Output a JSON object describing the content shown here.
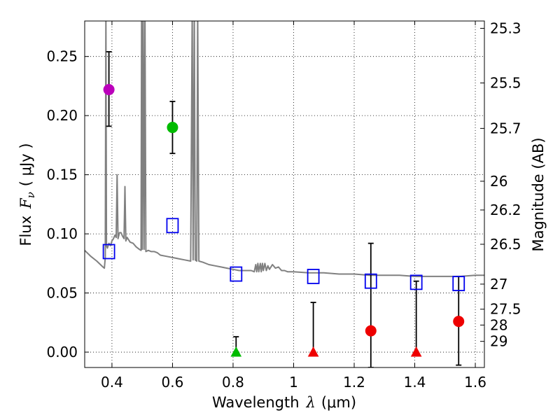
{
  "chart_data": {
    "type": "scatter",
    "xlabel": "Wavelength",
    "xlabel_symbol": "λ",
    "xlabel_unit": "(μm)",
    "ylabel": "Flux",
    "ylabel_symbol": "F",
    "ylabel_subscript": "ν",
    "ylabel_unit": "( μJy )",
    "right_ylabel": "Magnitude (AB)",
    "xlim": [
      0.31,
      1.63
    ],
    "ylim": [
      -0.013,
      0.28
    ],
    "grid": true,
    "x_ticks": [
      {
        "value": 0.4,
        "label": "0.4"
      },
      {
        "value": 0.6,
        "label": "0.6"
      },
      {
        "value": 0.8,
        "label": "0.8"
      },
      {
        "value": 1.0,
        "label": "1"
      },
      {
        "value": 1.2,
        "label": "1.2"
      },
      {
        "value": 1.4,
        "label": "1.4"
      },
      {
        "value": 1.6,
        "label": "1.6"
      }
    ],
    "y_ticks": [
      {
        "value": 0.0,
        "label": "0.00"
      },
      {
        "value": 0.05,
        "label": "0.05"
      },
      {
        "value": 0.1,
        "label": "0.10"
      },
      {
        "value": 0.15,
        "label": "0.15"
      },
      {
        "value": 0.2,
        "label": "0.20"
      },
      {
        "value": 0.25,
        "label": "0.25"
      }
    ],
    "right_ticks": [
      {
        "flux": 0.2738,
        "label": "25.3"
      },
      {
        "flux": 0.2276,
        "label": "25.5"
      },
      {
        "flux": 0.1892,
        "label": "25.7"
      },
      {
        "flux": 0.1445,
        "label": "26"
      },
      {
        "flux": 0.1202,
        "label": "26.2"
      },
      {
        "flux": 0.0912,
        "label": "26.5"
      },
      {
        "flux": 0.0575,
        "label": "27"
      },
      {
        "flux": 0.0363,
        "label": "27.5"
      },
      {
        "flux": 0.0229,
        "label": "28"
      },
      {
        "flux": 0.0091,
        "label": "29"
      }
    ],
    "model_spectrum": {
      "name": "template spectrum",
      "color": "#808080",
      "points": [
        [
          0.31,
          0.086
        ],
        [
          0.33,
          0.081
        ],
        [
          0.35,
          0.077
        ],
        [
          0.37,
          0.072
        ],
        [
          0.375,
          0.071
        ],
        [
          0.378,
          0.08
        ],
        [
          0.38,
          0.29
        ],
        [
          0.382,
          0.09
        ],
        [
          0.385,
          0.088
        ],
        [
          0.39,
          0.092
        ],
        [
          0.395,
          0.09
        ],
        [
          0.4,
          0.094
        ],
        [
          0.405,
          0.096
        ],
        [
          0.41,
          0.099
        ],
        [
          0.414,
          0.097
        ],
        [
          0.417,
          0.15
        ],
        [
          0.42,
          0.096
        ],
        [
          0.425,
          0.101
        ],
        [
          0.43,
          0.101
        ],
        [
          0.435,
          0.098
        ],
        [
          0.44,
          0.096
        ],
        [
          0.443,
          0.14
        ],
        [
          0.446,
          0.094
        ],
        [
          0.45,
          0.097
        ],
        [
          0.46,
          0.093
        ],
        [
          0.47,
          0.092
        ],
        [
          0.48,
          0.089
        ],
        [
          0.49,
          0.087
        ],
        [
          0.496,
          0.086
        ],
        [
          0.498,
          0.29
        ],
        [
          0.5,
          0.087
        ],
        [
          0.503,
          0.29
        ],
        [
          0.506,
          0.087
        ],
        [
          0.509,
          0.29
        ],
        [
          0.512,
          0.085
        ],
        [
          0.52,
          0.086
        ],
        [
          0.53,
          0.085
        ],
        [
          0.54,
          0.085
        ],
        [
          0.55,
          0.084
        ],
        [
          0.56,
          0.082
        ],
        [
          0.58,
          0.081
        ],
        [
          0.6,
          0.08
        ],
        [
          0.62,
          0.079
        ],
        [
          0.64,
          0.078
        ],
        [
          0.66,
          0.077
        ],
        [
          0.665,
          0.29
        ],
        [
          0.668,
          0.078
        ],
        [
          0.672,
          0.29
        ],
        [
          0.675,
          0.078
        ],
        [
          0.68,
          0.077
        ],
        [
          0.683,
          0.29
        ],
        [
          0.687,
          0.077
        ],
        [
          0.7,
          0.076
        ],
        [
          0.72,
          0.074
        ],
        [
          0.74,
          0.073
        ],
        [
          0.76,
          0.072
        ],
        [
          0.78,
          0.071
        ],
        [
          0.8,
          0.07
        ],
        [
          0.82,
          0.069
        ],
        [
          0.84,
          0.069
        ],
        [
          0.86,
          0.069
        ],
        [
          0.87,
          0.068
        ],
        [
          0.875,
          0.074
        ],
        [
          0.878,
          0.068
        ],
        [
          0.882,
          0.075
        ],
        [
          0.885,
          0.068
        ],
        [
          0.89,
          0.075
        ],
        [
          0.893,
          0.068
        ],
        [
          0.897,
          0.075
        ],
        [
          0.9,
          0.069
        ],
        [
          0.905,
          0.075
        ],
        [
          0.91,
          0.069
        ],
        [
          0.915,
          0.073
        ],
        [
          0.92,
          0.07
        ],
        [
          0.93,
          0.074
        ],
        [
          0.94,
          0.071
        ],
        [
          0.95,
          0.072
        ],
        [
          0.96,
          0.069
        ],
        [
          0.97,
          0.069
        ],
        [
          0.98,
          0.068
        ],
        [
          1.0,
          0.068
        ],
        [
          1.05,
          0.067
        ],
        [
          1.1,
          0.067
        ],
        [
          1.15,
          0.066
        ],
        [
          1.2,
          0.066
        ],
        [
          1.25,
          0.065
        ],
        [
          1.3,
          0.065
        ],
        [
          1.35,
          0.065
        ],
        [
          1.4,
          0.064
        ],
        [
          1.45,
          0.064
        ],
        [
          1.5,
          0.064
        ],
        [
          1.55,
          0.064
        ],
        [
          1.6,
          0.065
        ],
        [
          1.63,
          0.065
        ]
      ]
    },
    "series": [
      {
        "name": "model photometry",
        "marker": "square-open",
        "color": "#0000ee",
        "points": [
          {
            "x": 0.39,
            "y": 0.085
          },
          {
            "x": 0.6,
            "y": 0.107
          },
          {
            "x": 0.81,
            "y": 0.066
          },
          {
            "x": 1.065,
            "y": 0.064
          },
          {
            "x": 1.255,
            "y": 0.06
          },
          {
            "x": 1.405,
            "y": 0.059
          },
          {
            "x": 1.545,
            "y": 0.058
          }
        ]
      },
      {
        "name": "detection (violet)",
        "marker": "circle",
        "color": "#bb00bb",
        "points": [
          {
            "x": 0.39,
            "y": 0.222,
            "err_low": 0.191,
            "err_high": 0.254
          }
        ]
      },
      {
        "name": "detection (green)",
        "marker": "circle",
        "color": "#00bb00",
        "points": [
          {
            "x": 0.6,
            "y": 0.19,
            "err_low": 0.168,
            "err_high": 0.212
          }
        ]
      },
      {
        "name": "detection (red)",
        "marker": "circle",
        "color": "#ee0000",
        "points": [
          {
            "x": 1.255,
            "y": 0.018,
            "err_low": -0.013,
            "err_high": 0.092
          },
          {
            "x": 1.545,
            "y": 0.026,
            "err_low": -0.011,
            "err_high": 0.064
          }
        ]
      },
      {
        "name": "upper limit (green)",
        "marker": "triangle",
        "color": "#00bb00",
        "points": [
          {
            "x": 0.81,
            "y": 0.0,
            "err_low": 0.0,
            "err_high": 0.013
          }
        ]
      },
      {
        "name": "upper limit (red)",
        "marker": "triangle",
        "color": "#ee0000",
        "points": [
          {
            "x": 1.065,
            "y": 0.0,
            "err_low": 0.0,
            "err_high": 0.042
          },
          {
            "x": 1.405,
            "y": 0.0,
            "err_low": 0.0,
            "err_high": 0.06
          }
        ]
      }
    ]
  }
}
